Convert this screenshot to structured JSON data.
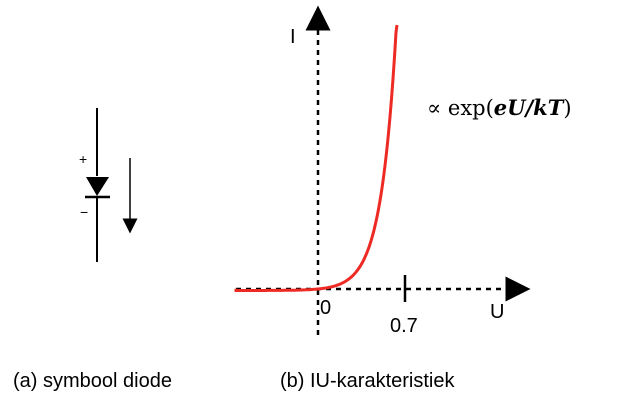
{
  "symbol": {
    "plus": "+",
    "minus": "−"
  },
  "graph": {
    "y_axis_label": "I",
    "x_axis_label": "U",
    "origin_label": "0",
    "tick_label": "0.7",
    "formula": {
      "prefix": "∝ exp(",
      "italic": "eU/kT",
      "suffix": ")"
    },
    "curve_color": "#ee2a24"
  },
  "captions": {
    "a": "(a) symbool diode",
    "b": "(b) IU-karakteristiek"
  }
}
